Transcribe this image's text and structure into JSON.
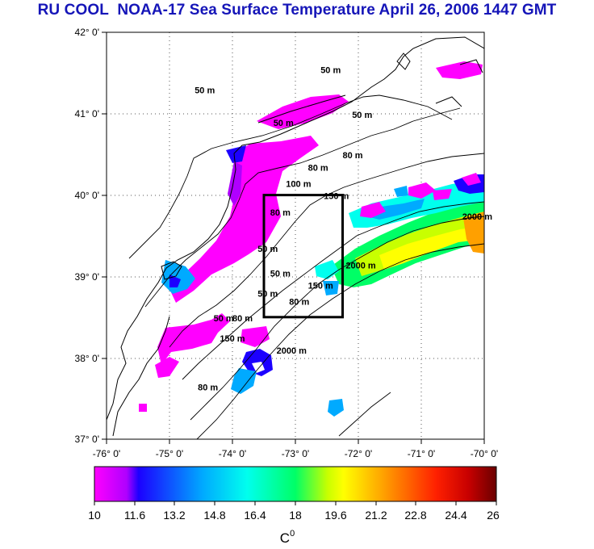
{
  "title": "RU COOL  NOAA-17 Sea Surface Temperature April 26, 2006 1447 GMT",
  "map": {
    "lon_range": [
      -76,
      -70
    ],
    "lat_range": [
      37,
      42
    ],
    "lon_labels": [
      "-76° 0'",
      "-75° 0'",
      "-74° 0'",
      "-73° 0'",
      "-72° 0'",
      "-71° 0'",
      "-70° 0'"
    ],
    "lat_labels": [
      "42° 0'",
      "41° 0'",
      "40° 0'",
      "39° 0'",
      "38° 0'",
      "37° 0'"
    ],
    "grid": "dotted",
    "study_box": {
      "lon_min": -73.5,
      "lon_max": -72.25,
      "lat_min": 38.5,
      "lat_max": 40.0
    },
    "contour_labels": [
      {
        "text": "50 m",
        "lon": -74.6,
        "lat": 41.25
      },
      {
        "text": "50 m",
        "lon": -73.35,
        "lat": 40.85
      },
      {
        "text": "50 m",
        "lon": -72.6,
        "lat": 41.5
      },
      {
        "text": "50 m",
        "lon": -72.1,
        "lat": 40.95
      },
      {
        "text": "80 m",
        "lon": -72.8,
        "lat": 40.3
      },
      {
        "text": "80 m",
        "lon": -72.25,
        "lat": 40.45
      },
      {
        "text": "150 m",
        "lon": -72.55,
        "lat": 39.95
      },
      {
        "text": "100 m",
        "lon": -73.15,
        "lat": 40.1
      },
      {
        "text": "80 m",
        "lon": -73.4,
        "lat": 39.75
      },
      {
        "text": "50 m",
        "lon": -73.6,
        "lat": 39.3
      },
      {
        "text": "50 m",
        "lon": -73.4,
        "lat": 39.0
      },
      {
        "text": "50 m",
        "lon": -73.6,
        "lat": 38.75
      },
      {
        "text": "80 m",
        "lon": -73.1,
        "lat": 38.65
      },
      {
        "text": "150 m",
        "lon": -72.8,
        "lat": 38.85
      },
      {
        "text": "2000 m",
        "lon": -72.2,
        "lat": 39.1
      },
      {
        "text": "2000 m",
        "lon": -70.35,
        "lat": 39.7
      },
      {
        "text": "50 m",
        "lon": -74.3,
        "lat": 38.45
      },
      {
        "text": "80 m",
        "lon": -74.0,
        "lat": 38.45
      },
      {
        "text": "150 m",
        "lon": -74.2,
        "lat": 38.2
      },
      {
        "text": "2000 m",
        "lon": -73.3,
        "lat": 38.05
      },
      {
        "text": "80 m",
        "lon": -74.55,
        "lat": 37.6
      }
    ]
  },
  "colorbar": {
    "min": 10,
    "max": 26,
    "tick_labels": [
      "10",
      "11.6",
      "13.2",
      "14.8",
      "16.4",
      "18",
      "19.6",
      "21.2",
      "22.8",
      "24.4",
      "26"
    ],
    "unit": "C",
    "unit_superscript": "0",
    "colors": {
      "c0": "#ff00ff",
      "c1": "#b000ff",
      "c2": "#1c00ff",
      "c3": "#00aaff",
      "c4": "#00ffee",
      "c5": "#00ff66",
      "c6": "#c8ff00",
      "c7": "#ffff00",
      "c8": "#ffa000",
      "c9": "#ff2000",
      "c10": "#c80000",
      "c11": "#6a0000"
    }
  }
}
